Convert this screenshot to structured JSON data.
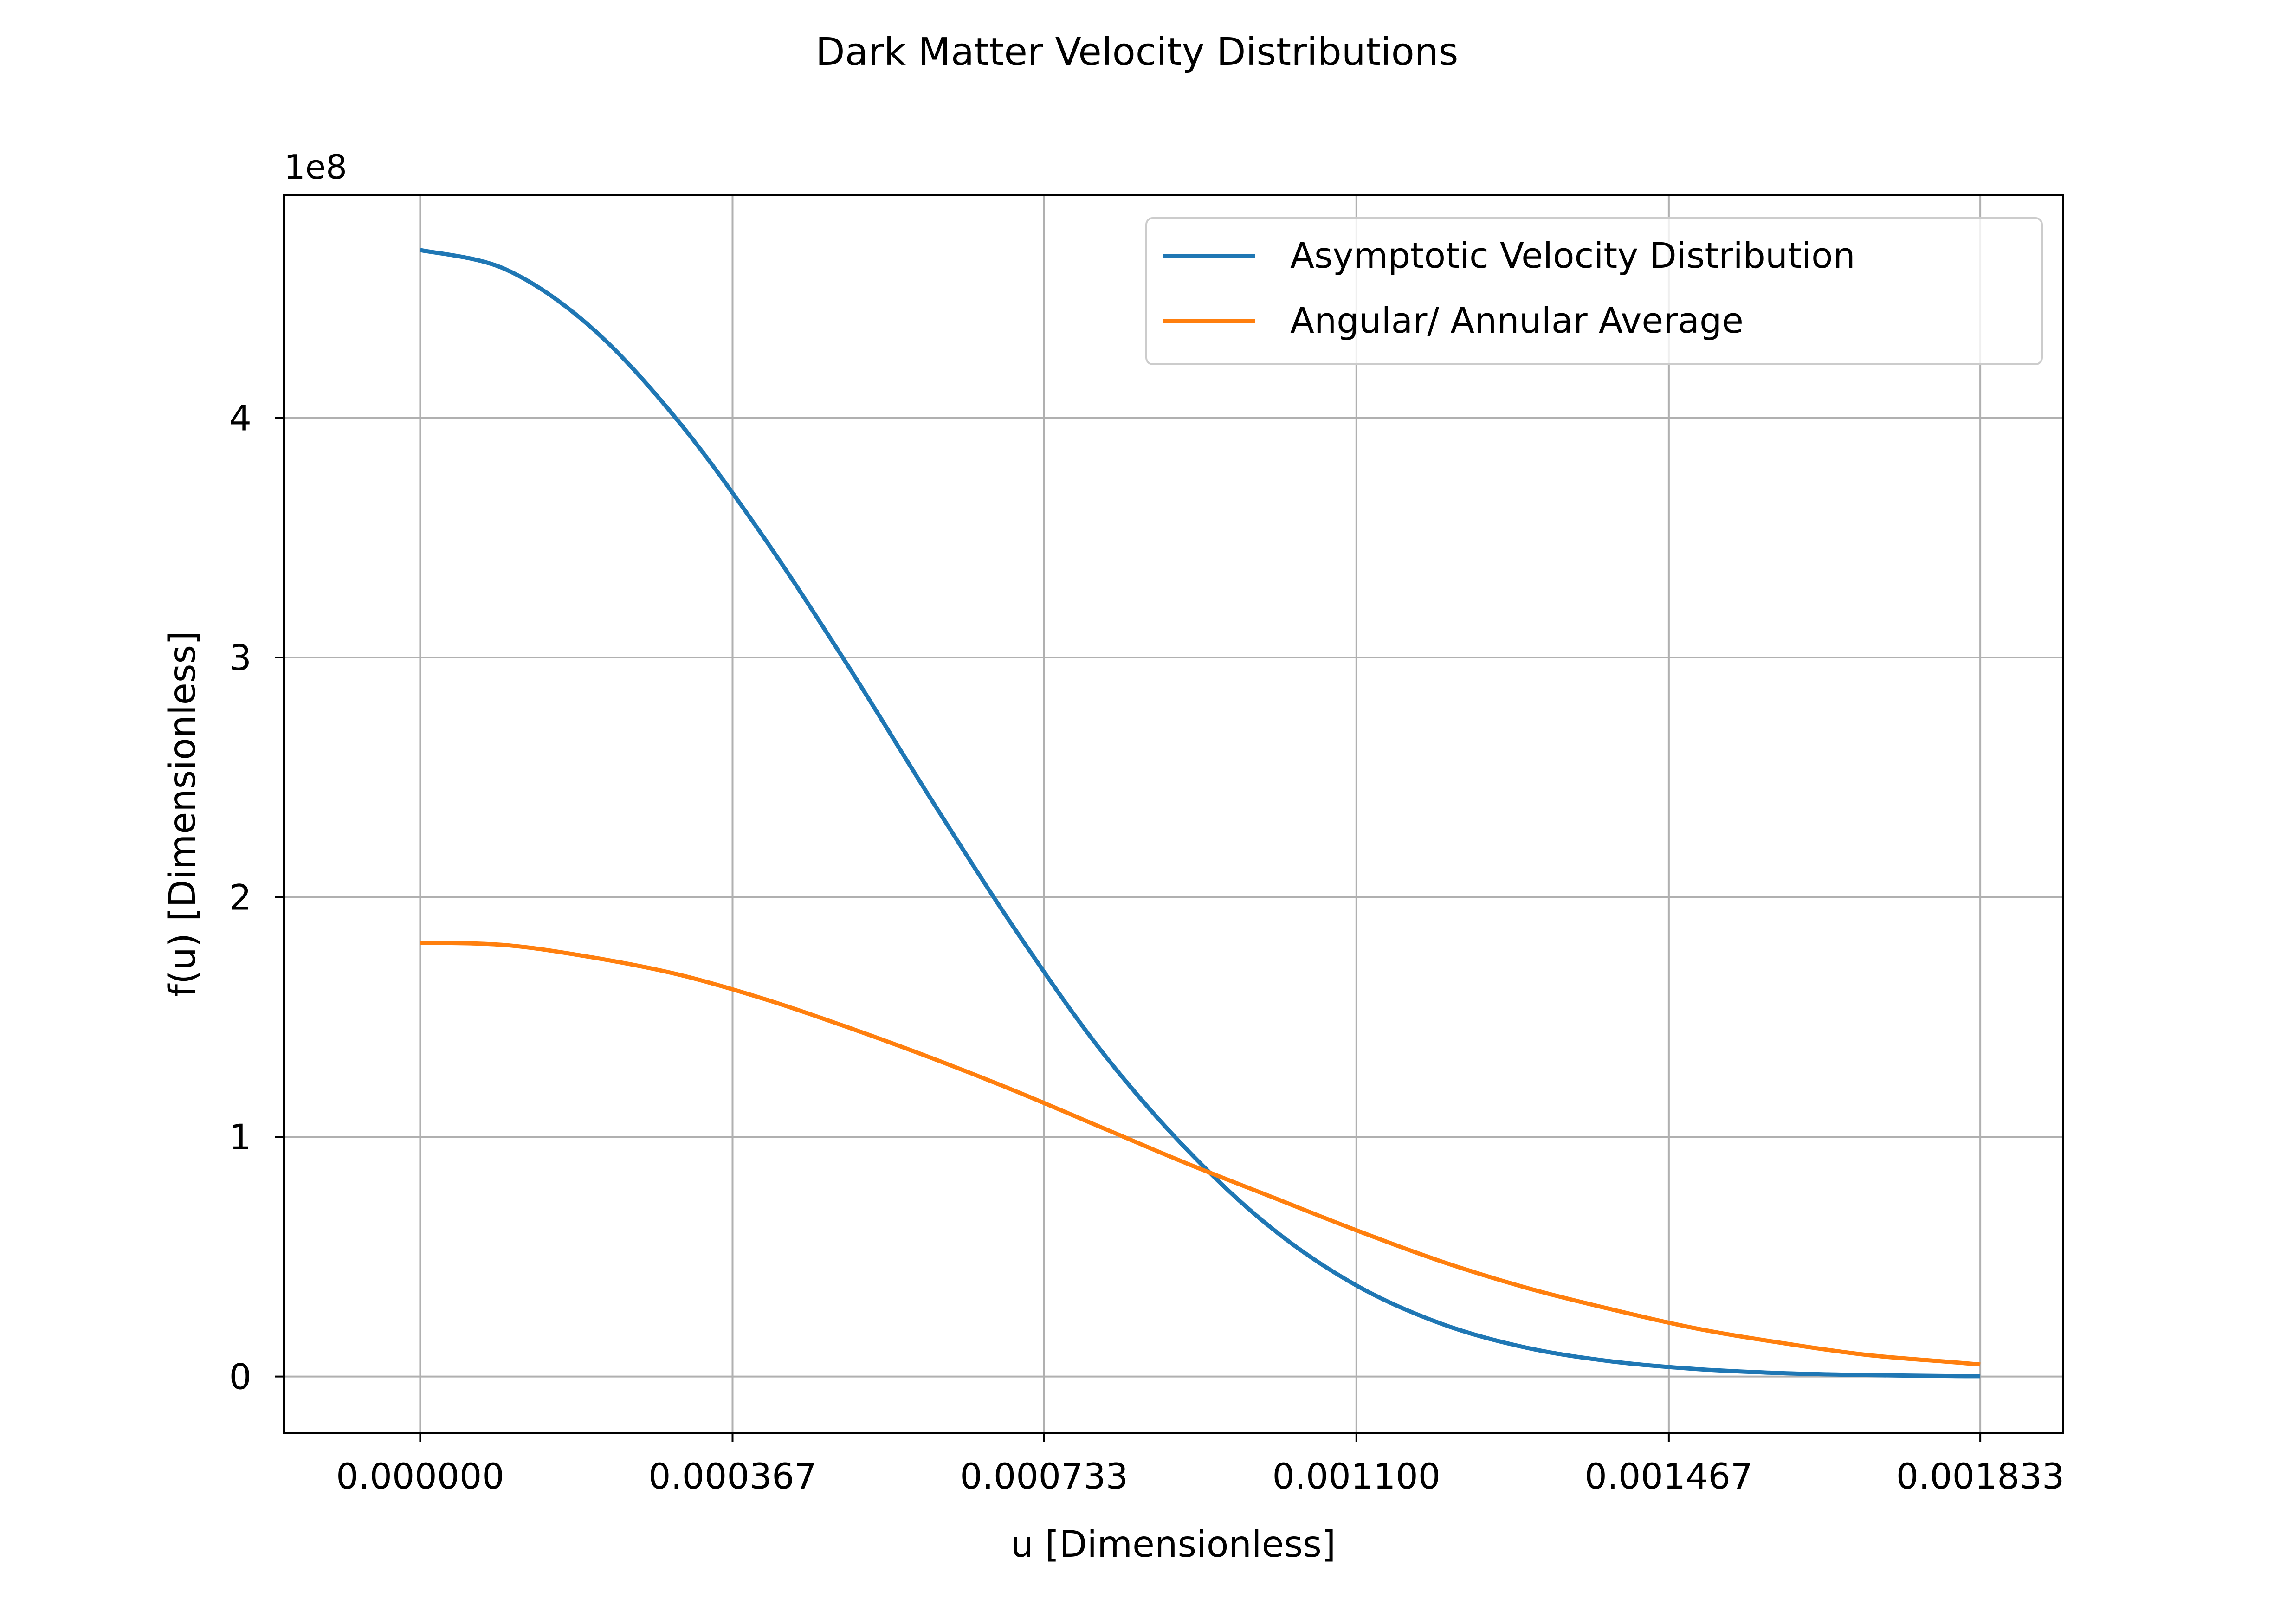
{
  "chart_data": {
    "type": "line",
    "title": "Dark Matter Velocity Distributions",
    "xlabel": "u [Dimensionless]",
    "ylabel": "f(u) [Dimensionless]",
    "y_offset_label": "1e8",
    "y_scale": 100000000,
    "xlim": [
      -0.00016,
      0.00193
    ],
    "ylim": [
      -0.235,
      4.93
    ],
    "xticks": [
      0.0,
      0.000367,
      0.000733,
      0.0011,
      0.001467,
      0.001833
    ],
    "xtick_labels": [
      "0.000000",
      "0.000367",
      "0.000733",
      "0.001100",
      "0.001467",
      "0.001833"
    ],
    "yticks": [
      0,
      1,
      2,
      3,
      4
    ],
    "ytick_labels": [
      "0",
      "1",
      "2",
      "3",
      "4"
    ],
    "grid": true,
    "legend_position": "top-right",
    "x": [
      0.0,
      0.0001,
      0.0002,
      0.0003,
      0.0004,
      0.0005,
      0.0006,
      0.0007,
      0.0008,
      0.0009,
      0.001,
      0.0011,
      0.0012,
      0.0013,
      0.0014,
      0.0015,
      0.0016,
      0.0017,
      0.0018,
      0.001833
    ],
    "series": [
      {
        "name": "Asymptotic Velocity Distribution",
        "color": "#1f77b4",
        "values": [
          4.7,
          4.62,
          4.38,
          4.0,
          3.52,
          2.98,
          2.41,
          1.86,
          1.36,
          0.95,
          0.62,
          0.38,
          0.22,
          0.12,
          0.063,
          0.031,
          0.014,
          0.006,
          0.002,
          0.0013
        ]
      },
      {
        "name": "Angular/ Annular Average",
        "color": "#ff7f0e",
        "values": [
          1.81,
          1.8,
          1.75,
          1.68,
          1.58,
          1.46,
          1.33,
          1.19,
          1.04,
          0.89,
          0.75,
          0.61,
          0.48,
          0.37,
          0.28,
          0.2,
          0.14,
          0.09,
          0.06,
          0.05
        ]
      }
    ]
  }
}
